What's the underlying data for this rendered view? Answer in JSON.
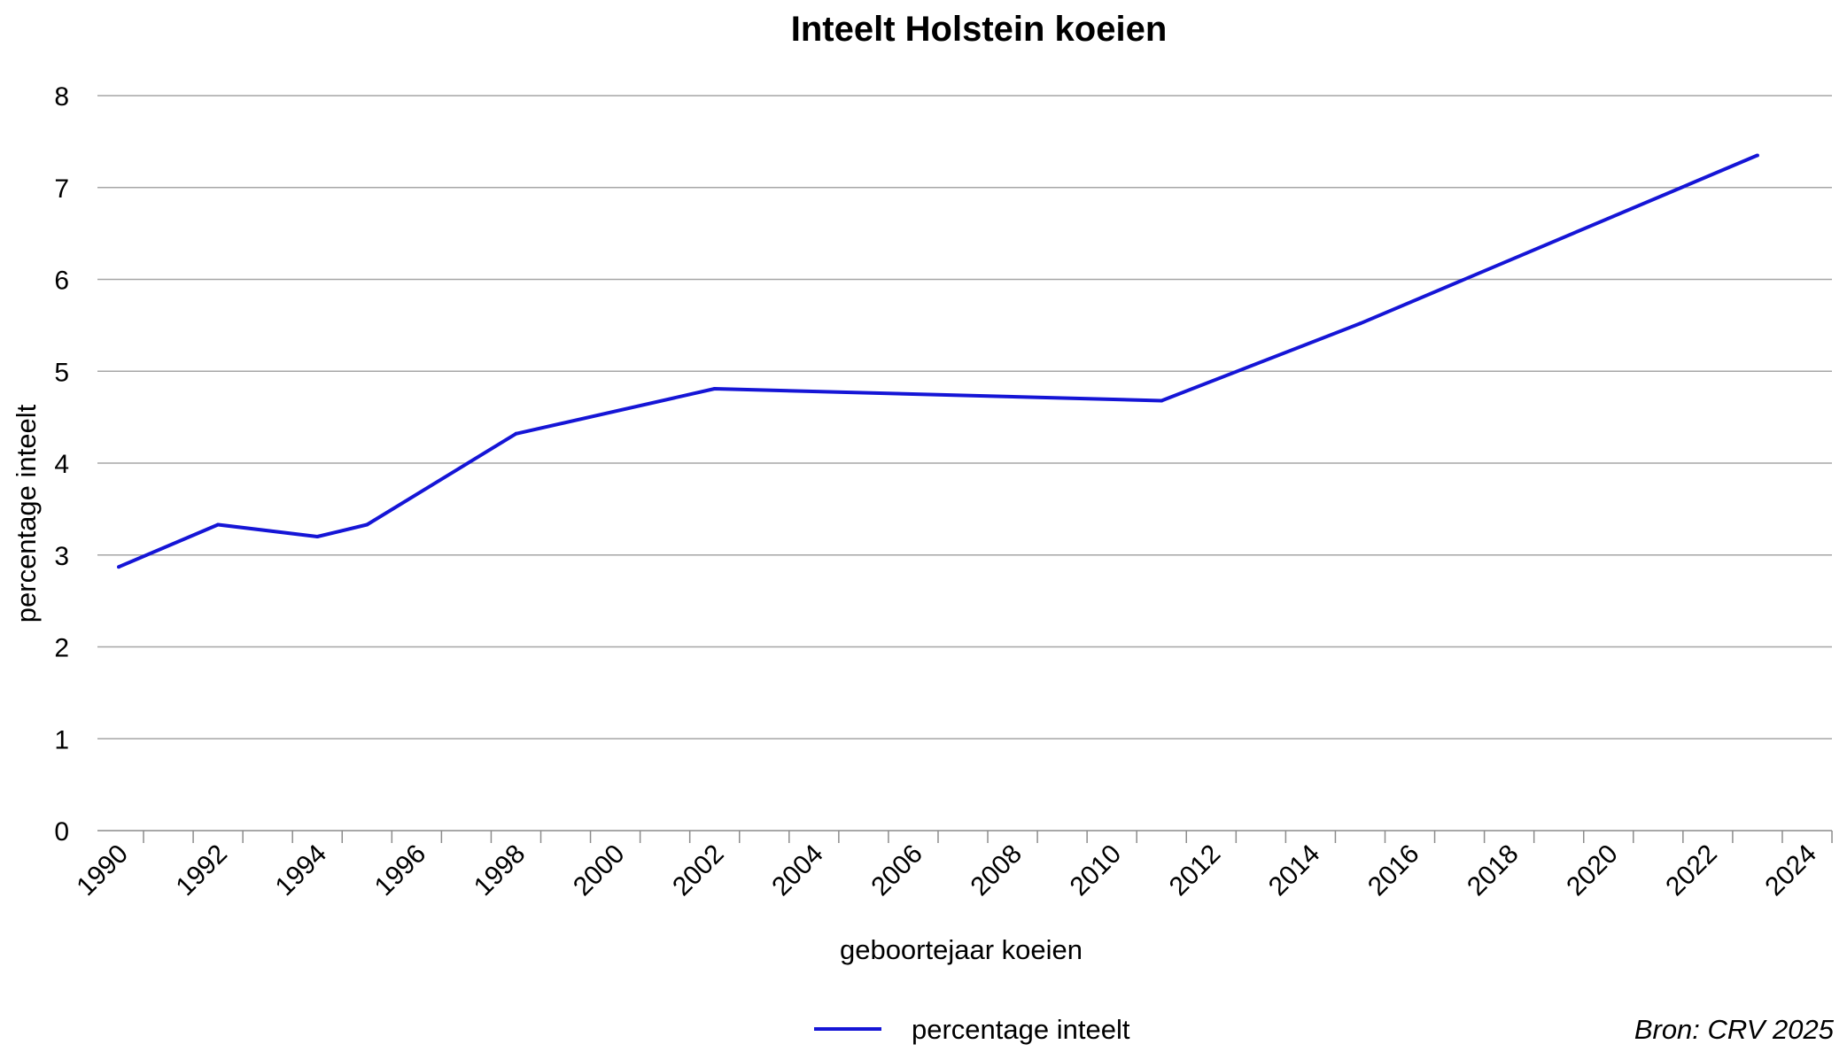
{
  "chart_data": {
    "type": "line",
    "title": "Inteelt Holstein koeien",
    "xlabel": "geboortejaar koeien",
    "ylabel": "percentage inteelt",
    "source": "Bron: CRV 2025",
    "ylim": [
      0,
      8
    ],
    "xlim": [
      1990,
      2024
    ],
    "x_ticks": [
      1990,
      1992,
      1994,
      1996,
      1998,
      2000,
      2002,
      2004,
      2006,
      2008,
      2010,
      2012,
      2014,
      2016,
      2018,
      2020,
      2022,
      2024
    ],
    "y_ticks": [
      0,
      1,
      2,
      3,
      4,
      5,
      6,
      7,
      8
    ],
    "grid": true,
    "legend_position": "bottom",
    "series": [
      {
        "name": "percentage inteelt",
        "color": "#1515d6",
        "points": [
          {
            "x": 1990,
            "y": 2.87
          },
          {
            "x": 1992,
            "y": 3.33
          },
          {
            "x": 1994,
            "y": 3.2
          },
          {
            "x": 1995,
            "y": 3.33
          },
          {
            "x": 1998,
            "y": 4.32
          },
          {
            "x": 2002,
            "y": 4.81
          },
          {
            "x": 2011,
            "y": 4.68
          },
          {
            "x": 2015,
            "y": 5.52
          },
          {
            "x": 2023,
            "y": 7.35
          }
        ]
      }
    ]
  }
}
